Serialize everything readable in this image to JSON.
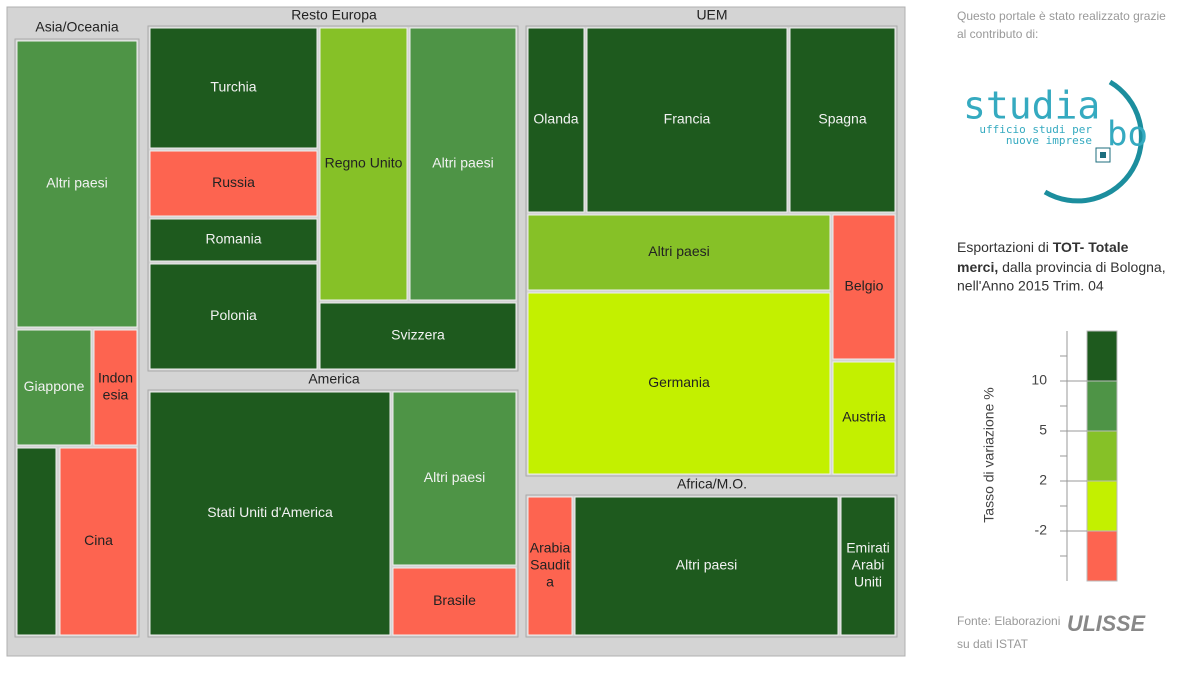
{
  "chart_data": {
    "type": "treemap",
    "groups": [
      {
        "title": "Asia/Oceania",
        "cells": [
          {
            "label": [
              "Altri paesi"
            ],
            "color": "#4e9446"
          },
          {
            "label": [
              "Giappone"
            ],
            "color": "#4e9446"
          },
          {
            "label": [
              "Indon",
              "esia"
            ],
            "color": "#fd6450"
          },
          {
            "label": [],
            "color": "#1e5a1e"
          },
          {
            "label": [
              "Cina"
            ],
            "color": "#fd6450"
          }
        ]
      },
      {
        "title": "Resto Europa",
        "cells": [
          {
            "label": [
              "Turchia"
            ],
            "color": "#1e5a1e"
          },
          {
            "label": [
              "Russia"
            ],
            "color": "#fd6450"
          },
          {
            "label": [
              "Romania"
            ],
            "color": "#1e5a1e"
          },
          {
            "label": [
              "Polonia"
            ],
            "color": "#1e5a1e"
          },
          {
            "label": [
              "Regno Unito"
            ],
            "color": "#86c127"
          },
          {
            "label": [
              "Altri paesi"
            ],
            "color": "#4e9446"
          },
          {
            "label": [
              "Svizzera"
            ],
            "color": "#1e5a1e"
          }
        ]
      },
      {
        "title": "America",
        "cells": [
          {
            "label": [
              "Stati Uniti d'America"
            ],
            "color": "#1e5a1e"
          },
          {
            "label": [
              "Altri paesi"
            ],
            "color": "#4e9446"
          },
          {
            "label": [
              "Brasile"
            ],
            "color": "#fd6450"
          }
        ]
      },
      {
        "title": "UEM",
        "cells": [
          {
            "label": [
              "Olanda"
            ],
            "color": "#1e5a1e"
          },
          {
            "label": [
              "Francia"
            ],
            "color": "#1e5a1e"
          },
          {
            "label": [
              "Spagna"
            ],
            "color": "#1e5a1e"
          },
          {
            "label": [
              "Altri paesi"
            ],
            "color": "#86c127"
          },
          {
            "label": [
              "Germania"
            ],
            "color": "#c3f000"
          },
          {
            "label": [
              "Belgio"
            ],
            "color": "#fd6450"
          },
          {
            "label": [
              "Austria"
            ],
            "color": "#c3f000"
          }
        ]
      },
      {
        "title": "Africa/M.O.",
        "cells": [
          {
            "label": [
              "Arabia",
              "Saudit",
              "a"
            ],
            "color": "#fd6450"
          },
          {
            "label": [
              "Altri paesi"
            ],
            "color": "#1e5a1e"
          },
          {
            "label": [
              "Emirati",
              "Arabi",
              "Uniti"
            ],
            "color": "#1e5a1e"
          }
        ]
      }
    ],
    "legend": {
      "title": "Tasso di variazione %",
      "colors": [
        "#1e5a1e",
        "#4e9446",
        "#86c127",
        "#c3f000",
        "#fd6450"
      ],
      "ticks": [
        10,
        5,
        2,
        -2
      ]
    }
  },
  "sidebar": {
    "credit": [
      "Questo portale è stato realizzato grazie",
      "al contributo di:"
    ],
    "logo": {
      "word1": "studia",
      "word2": "bo",
      "line1": "ufficio studi per",
      "line2": "nuove imprese"
    },
    "description": {
      "prefix": "Esportazioni di ",
      "bold1": "TOT- Totale",
      "bold2": "merci,",
      "rest1": " dalla provincia di Bologna,",
      "rest2": "nell'Anno 2015 Trim. 04"
    },
    "source": {
      "prefix": "Fonte: Elaborazioni",
      "brand": "ULISSE",
      "suffix": "su dati ISTAT"
    }
  }
}
